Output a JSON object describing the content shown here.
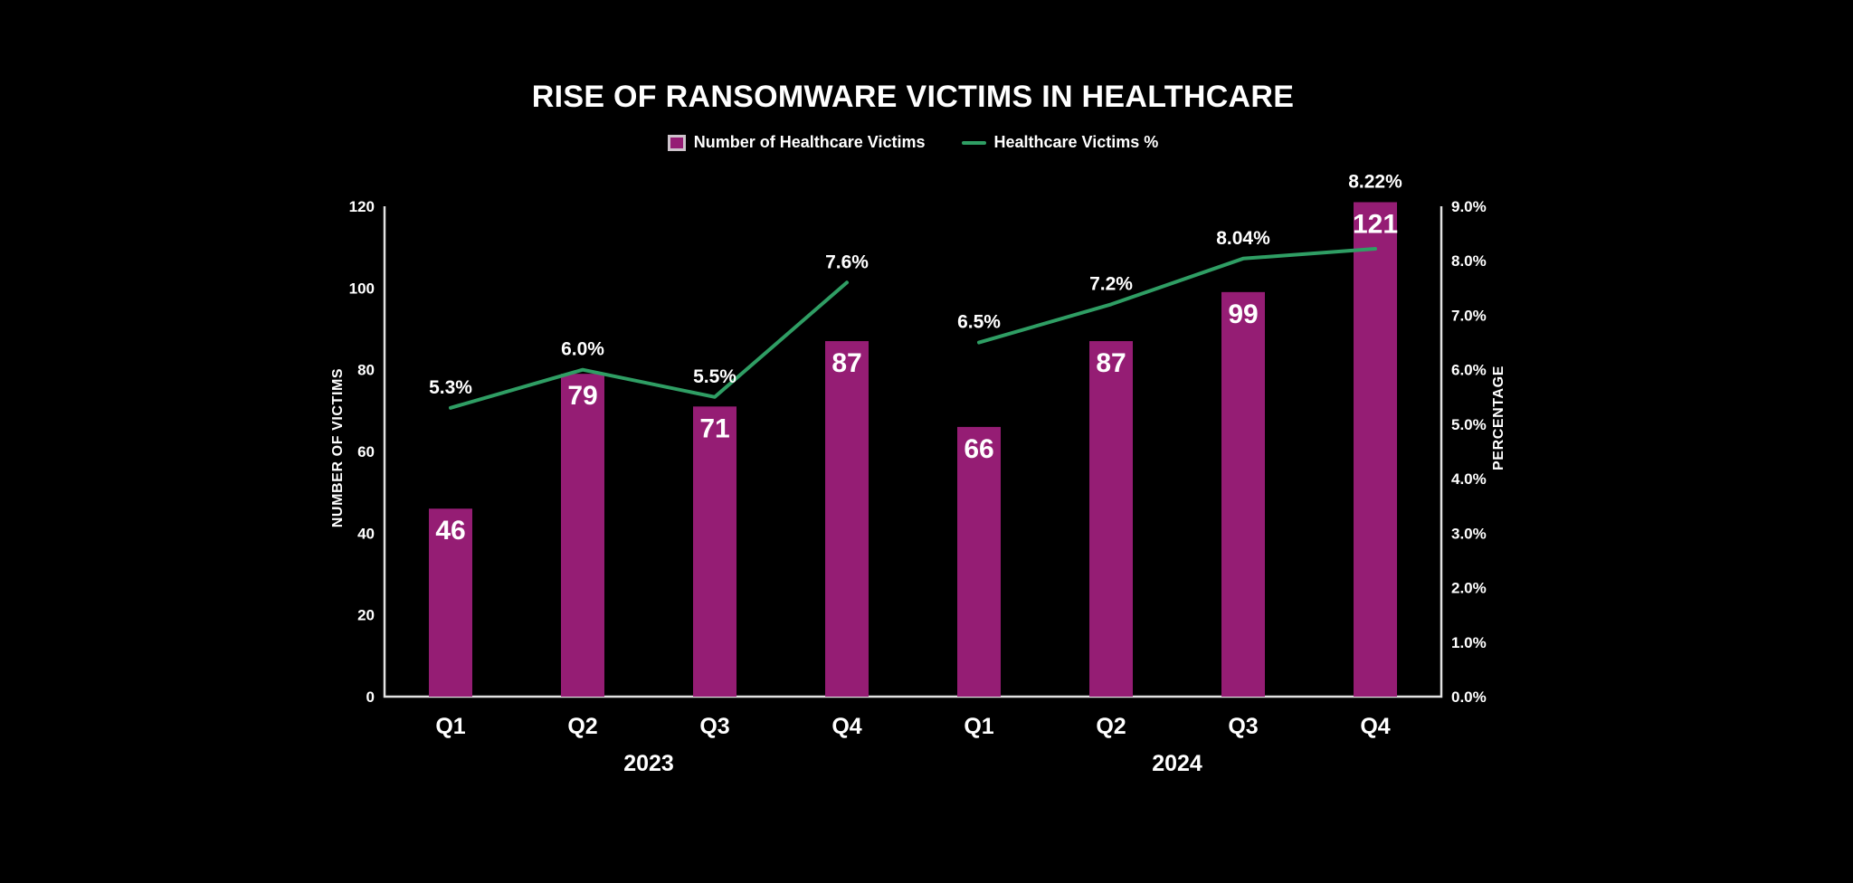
{
  "colors": {
    "background": "#000000",
    "text": "#ffffff",
    "axis_line": "#e2e2e2",
    "bar": "#951d74",
    "line": "#2f9e64",
    "legend_swatch_border": "#cdc3cb"
  },
  "chart_data": {
    "type": "combo-bar-line",
    "title": "RISE OF RANSOMWARE VICTIMS IN HEALTHCARE",
    "categories": [
      "Q1",
      "Q2",
      "Q3",
      "Q4",
      "Q1",
      "Q2",
      "Q3",
      "Q4"
    ],
    "year_groups": [
      {
        "label": "2023",
        "span": [
          0,
          3
        ]
      },
      {
        "label": "2024",
        "span": [
          4,
          7
        ]
      }
    ],
    "series": [
      {
        "name": "Number of Healthcare Victims",
        "type": "bar",
        "axis": "left",
        "color": "#951d74",
        "values": [
          46,
          79,
          71,
          87,
          66,
          87,
          99,
          121
        ]
      },
      {
        "name": "Healthcare Victims %",
        "type": "line",
        "axis": "right",
        "color": "#2f9e64",
        "values": [
          5.3,
          6.0,
          5.5,
          7.6,
          6.5,
          7.2,
          8.04,
          8.22
        ],
        "labels": [
          "5.3%",
          "6.0%",
          "5.5%",
          "7.6%",
          "6.5%",
          "7.2%",
          "8.04%",
          "8.22%"
        ],
        "segments": [
          [
            0,
            3
          ],
          [
            4,
            7
          ]
        ]
      }
    ],
    "left_axis": {
      "title": "NUMBER OF VICTIMS",
      "min": 0,
      "max": 120,
      "step": 20,
      "ticks": [
        "0",
        "20",
        "40",
        "60",
        "80",
        "100",
        "120"
      ]
    },
    "right_axis": {
      "title": "PERCENTAGE",
      "min": 0,
      "max": 9,
      "step": 1,
      "ticks": [
        "0.0%",
        "1.0%",
        "2.0%",
        "3.0%",
        "4.0%",
        "5.0%",
        "6.0%",
        "7.0%",
        "8.0%",
        "9.0%"
      ]
    },
    "grid": false,
    "legend_position": "top"
  }
}
